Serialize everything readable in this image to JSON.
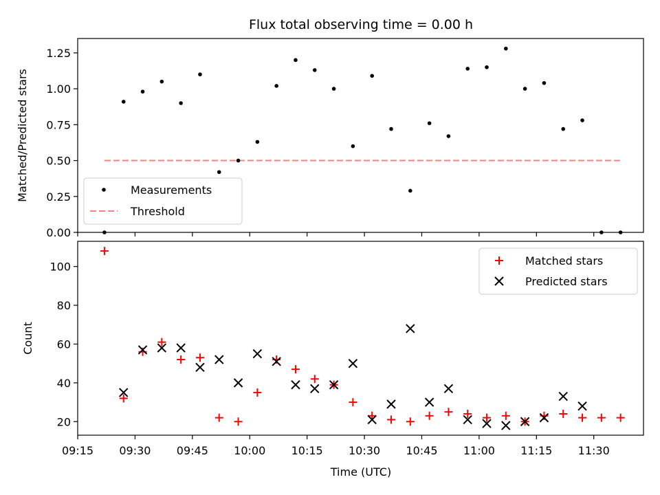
{
  "chart_data": [
    {
      "type": "scatter",
      "title": "Flux total observing time = 0.00 h",
      "xlabel": "",
      "ylabel": "Matched/Predicted stars",
      "xlim": [
        "09:15",
        "11:43"
      ],
      "ylim": [
        0,
        1.35
      ],
      "yticks": [
        "0.00",
        "0.25",
        "0.50",
        "0.75",
        "1.00",
        "1.25"
      ],
      "grid": false,
      "legend_position": "lower-left",
      "colors": {
        "measurements": "#000000",
        "threshold": "#ff7f7f"
      },
      "series": [
        {
          "name": "Measurements",
          "marker": "dot",
          "x": [
            "09:22",
            "09:27",
            "09:32",
            "09:37",
            "09:42",
            "09:47",
            "09:52",
            "09:57",
            "10:02",
            "10:07",
            "10:12",
            "10:17",
            "10:22",
            "10:27",
            "10:32",
            "10:37",
            "10:42",
            "10:47",
            "10:52",
            "10:57",
            "11:02",
            "11:07",
            "11:12",
            "11:17",
            "11:22",
            "11:27",
            "11:32",
            "11:37"
          ],
          "y": [
            0.0,
            0.91,
            0.98,
            1.05,
            0.9,
            1.1,
            0.42,
            0.5,
            0.63,
            1.02,
            1.2,
            1.13,
            1.0,
            0.6,
            1.09,
            0.72,
            0.29,
            0.76,
            0.67,
            1.14,
            1.15,
            1.28,
            1.0,
            1.04,
            0.72,
            0.78,
            0.0,
            0.0
          ]
        },
        {
          "name": "Threshold",
          "marker": "dashed-line",
          "x": [
            "09:22",
            "11:37"
          ],
          "y": [
            0.5,
            0.5
          ]
        }
      ]
    },
    {
      "type": "scatter",
      "title": "",
      "xlabel": "Time (UTC)",
      "ylabel": "Count",
      "xlim": [
        "09:15",
        "11:43"
      ],
      "ylim": [
        13,
        113
      ],
      "xticks": [
        "09:15",
        "09:30",
        "09:45",
        "10:00",
        "10:15",
        "10:30",
        "10:45",
        "11:00",
        "11:15",
        "11:30"
      ],
      "yticks": [
        "20",
        "40",
        "60",
        "80",
        "100"
      ],
      "grid": false,
      "legend_position": "upper-right",
      "colors": {
        "matched": "#ff0000",
        "predicted": "#000000"
      },
      "series": [
        {
          "name": "Matched stars",
          "marker": "plus",
          "x": [
            "09:22",
            "09:27",
            "09:32",
            "09:37",
            "09:42",
            "09:47",
            "09:52",
            "09:57",
            "10:02",
            "10:07",
            "10:12",
            "10:17",
            "10:22",
            "10:27",
            "10:32",
            "10:37",
            "10:42",
            "10:47",
            "10:52",
            "10:57",
            "11:02",
            "11:07",
            "11:12",
            "11:17",
            "11:22",
            "11:27",
            "11:32",
            "11:37"
          ],
          "y": [
            108,
            32,
            56,
            61,
            52,
            53,
            22,
            20,
            35,
            52,
            47,
            42,
            39,
            30,
            23,
            21,
            20,
            23,
            25,
            24,
            22,
            23,
            20,
            23,
            24,
            22,
            22,
            22
          ]
        },
        {
          "name": "Predicted stars",
          "marker": "x",
          "x": [
            "09:27",
            "09:32",
            "09:37",
            "09:42",
            "09:47",
            "09:52",
            "09:57",
            "10:02",
            "10:07",
            "10:12",
            "10:17",
            "10:22",
            "10:27",
            "10:32",
            "10:37",
            "10:42",
            "10:47",
            "10:52",
            "10:57",
            "11:02",
            "11:07",
            "11:12",
            "11:17",
            "11:22",
            "11:27"
          ],
          "y": [
            35,
            57,
            58,
            58,
            48,
            52,
            40,
            55,
            51,
            39,
            37,
            39,
            50,
            21,
            29,
            68,
            30,
            37,
            21,
            19,
            18,
            20,
            22,
            33,
            28
          ]
        }
      ]
    }
  ]
}
